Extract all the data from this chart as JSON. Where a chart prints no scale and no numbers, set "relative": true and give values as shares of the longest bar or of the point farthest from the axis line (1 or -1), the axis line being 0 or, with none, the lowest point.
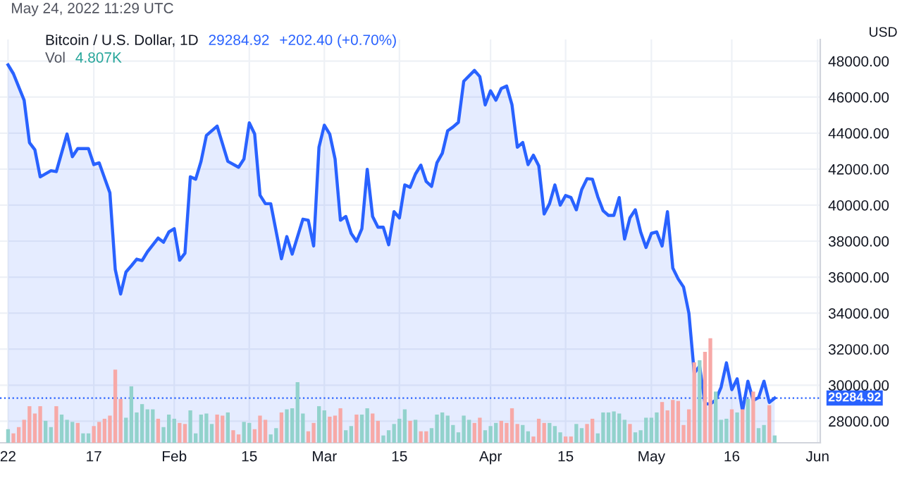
{
  "chart_data": [
    {
      "type": "area",
      "title": "Bitcoin / U.S. Dollar, 1D",
      "ylabel": "USD",
      "annotations": [
        "May 24, 2022 11:29 UTC",
        "29284.92",
        "+202.40 (+0.70%)"
      ],
      "x": [
        "2022-01-01",
        "2022-01-02",
        "2022-01-04",
        "2022-01-05",
        "2022-01-06",
        "2022-01-07",
        "2022-01-09",
        "2022-01-10",
        "2022-01-12",
        "2022-01-13",
        "2022-01-14",
        "2022-01-16",
        "2022-01-17",
        "2022-01-18",
        "2022-01-19",
        "2022-01-20",
        "2022-01-21",
        "2022-01-22",
        "2022-01-23",
        "2022-01-24",
        "2022-01-25",
        "2022-01-26",
        "2022-01-27",
        "2022-01-29",
        "2022-01-30",
        "2022-01-31",
        "2022-02-01",
        "2022-02-02",
        "2022-02-03",
        "2022-02-04",
        "2022-02-05",
        "2022-02-06",
        "2022-02-07",
        "2022-02-09",
        "2022-02-11",
        "2022-02-13",
        "2022-02-14",
        "2022-02-15",
        "2022-02-16",
        "2022-02-17",
        "2022-02-18",
        "2022-02-19",
        "2022-02-21",
        "2022-02-22",
        "2022-02-23",
        "2022-02-25",
        "2022-02-26",
        "2022-02-27",
        "2022-02-28",
        "2022-03-01",
        "2022-03-02",
        "2022-03-03",
        "2022-03-04",
        "2022-03-05",
        "2022-03-06",
        "2022-03-07",
        "2022-03-08",
        "2022-03-09",
        "2022-03-10",
        "2022-03-11",
        "2022-03-12",
        "2022-03-13",
        "2022-03-14",
        "2022-03-15",
        "2022-03-16",
        "2022-03-17",
        "2022-03-18",
        "2022-03-19",
        "2022-03-20",
        "2022-03-21",
        "2022-03-22",
        "2022-03-23",
        "2022-03-24",
        "2022-03-25",
        "2022-03-26",
        "2022-03-27",
        "2022-03-29",
        "2022-03-30",
        "2022-03-31",
        "2022-04-01",
        "2022-04-02",
        "2022-04-03",
        "2022-04-04",
        "2022-04-05",
        "2022-04-06",
        "2022-04-07",
        "2022-04-08",
        "2022-04-09",
        "2022-04-10",
        "2022-04-11",
        "2022-04-12",
        "2022-04-13",
        "2022-04-14",
        "2022-04-15",
        "2022-04-16",
        "2022-04-17",
        "2022-04-18",
        "2022-04-19",
        "2022-04-20",
        "2022-04-21",
        "2022-04-22",
        "2022-04-23",
        "2022-04-24",
        "2022-04-25",
        "2022-04-26",
        "2022-04-27",
        "2022-04-28",
        "2022-04-29",
        "2022-04-30",
        "2022-05-01",
        "2022-05-02",
        "2022-05-03",
        "2022-05-04",
        "2022-05-05",
        "2022-05-06",
        "2022-05-07",
        "2022-05-08",
        "2022-05-09",
        "2022-05-10",
        "2022-05-11",
        "2022-05-12",
        "2022-05-13",
        "2022-05-14",
        "2022-05-15",
        "2022-05-16",
        "2022-05-17",
        "2022-05-18",
        "2022-05-19",
        "2022-05-20",
        "2022-05-21",
        "2022-05-22",
        "2022-05-23",
        "2022-05-24"
      ],
      "series": [
        {
          "color": "#2962ff",
          "values": [
            47790,
            47300,
            45830,
            43470,
            43080,
            41570,
            41910,
            41860,
            43950,
            42690,
            43140,
            43140,
            42250,
            42350,
            41510,
            40680,
            36420,
            35060,
            36290,
            36630,
            37000,
            36920,
            37410,
            38170,
            37940,
            38510,
            38690,
            36940,
            37330,
            41570,
            41440,
            42430,
            43870,
            44390,
            42430,
            42100,
            42560,
            44570,
            43950,
            40550,
            40080,
            40080,
            37020,
            38250,
            37280,
            39220,
            39160,
            37730,
            43220,
            44440,
            43950,
            42560,
            39160,
            39370,
            38430,
            37990,
            38690,
            41990,
            39370,
            38770,
            38770,
            37800,
            39640,
            39290,
            41120,
            40990,
            41730,
            42220,
            41310,
            41040,
            42350,
            42880,
            44130,
            44340,
            44600,
            46880,
            47480,
            47140,
            45570,
            46350,
            45830,
            46480,
            46610,
            45570,
            43220,
            43480,
            42250,
            42770,
            42180,
            39510,
            40080,
            41120,
            40000,
            40530,
            40420,
            39740,
            40860,
            41470,
            41440,
            40470,
            39690,
            39430,
            39430,
            40420,
            38120,
            39290,
            39740,
            38510,
            37650,
            38430,
            38510,
            37730,
            39640,
            36500,
            35900,
            35450,
            33990,
            30670,
            31060,
            28970,
            28950,
            29180,
            29880,
            31240,
            29750,
            30350,
            28570,
            30220,
            29150,
            29310,
            30220,
            29040,
            29280
          ]
        }
      ],
      "xlim": [
        "2021-12-30T12:00",
        "2022-06-01T12:00"
      ],
      "xticks": [
        {
          "value": "2022-01-01",
          "label": "22"
        },
        {
          "value": "2022-01-17",
          "label": "17"
        },
        {
          "value": "2022-02-01",
          "label": "Feb"
        },
        {
          "value": "2022-02-15",
          "label": "15"
        },
        {
          "value": "2022-03-01",
          "label": "Mar"
        },
        {
          "value": "2022-03-15",
          "label": "15"
        },
        {
          "value": "2022-04-01",
          "label": "Apr"
        },
        {
          "value": "2022-04-15",
          "label": "15"
        },
        {
          "value": "2022-05-01",
          "label": "May"
        },
        {
          "value": "2022-05-16",
          "label": "16"
        },
        {
          "value": "2022-06-01",
          "label": "Jun"
        }
      ],
      "ylim": [
        26800,
        49200
      ],
      "yticks": [
        {
          "value": 28000,
          "label": "28000.00"
        },
        {
          "value": 30000,
          "label": "30000.00"
        },
        {
          "value": 32000,
          "label": "32000.00"
        },
        {
          "value": 34000,
          "label": "34000.00"
        },
        {
          "value": 36000,
          "label": "36000.00"
        },
        {
          "value": 38000,
          "label": "38000.00"
        },
        {
          "value": 40000,
          "label": "40000.00"
        },
        {
          "value": 42000,
          "label": "42000.00"
        },
        {
          "value": 44000,
          "label": "44000.00"
        },
        {
          "value": 46000,
          "label": "46000.00"
        },
        {
          "value": 48000,
          "label": "48000.00"
        }
      ],
      "grid": true,
      "ref_lines": [
        {
          "axis": "y",
          "value": 29284.92,
          "label": "29284.92",
          "color": "#2962ff",
          "line_style": "dotted"
        }
      ]
    },
    {
      "type": "bar",
      "relative": true,
      "title": "Vol",
      "annotations": [
        "4.807K"
      ],
      "categories": [
        null,
        null,
        null,
        null,
        null,
        null,
        null,
        null,
        null,
        null,
        null,
        null,
        null,
        null,
        null,
        null,
        null,
        null,
        null,
        null,
        null,
        null,
        null,
        null,
        null,
        null,
        null,
        null,
        null,
        null,
        null,
        null,
        null,
        null,
        null,
        null,
        null,
        null,
        null,
        null,
        null,
        null,
        null,
        null,
        null,
        null,
        null,
        null,
        null,
        null,
        null,
        null,
        null,
        null,
        null,
        null,
        null,
        null,
        null,
        null,
        null,
        null,
        null,
        null,
        null,
        null,
        null,
        null,
        null,
        null,
        null,
        null,
        null,
        null,
        null,
        null,
        null,
        null,
        null,
        null,
        null,
        null,
        null,
        null,
        null,
        null,
        null,
        null,
        null,
        null,
        null,
        null,
        null,
        null,
        null,
        null,
        null,
        null,
        null,
        null,
        null,
        null,
        null,
        null,
        null,
        null,
        null,
        null,
        null,
        null,
        null,
        null,
        null,
        null,
        null,
        null,
        null,
        null,
        null,
        null,
        null,
        null,
        null,
        null,
        null,
        null,
        null,
        null,
        null,
        null,
        null,
        null,
        null,
        null,
        null,
        null,
        null,
        null,
        null,
        null,
        null,
        null,
        null,
        null
      ],
      "values": [
        0.13,
        0.09,
        0.15,
        0.22,
        0.35,
        0.28,
        0.35,
        0.21,
        0.15,
        0.35,
        0.27,
        0.22,
        0.2,
        0.19,
        0.09,
        0.09,
        0.16,
        0.2,
        0.23,
        0.26,
        0.7,
        0.42,
        0.24,
        0.54,
        0.29,
        0.37,
        0.32,
        0.32,
        0.23,
        0.15,
        0.27,
        0.23,
        0.19,
        0.18,
        0.31,
        0.09,
        0.27,
        0.28,
        0.18,
        0.27,
        0.26,
        0.29,
        0.12,
        0.08,
        0.2,
        0.19,
        0.13,
        0.26,
        0.22,
        0.08,
        0.14,
        0.29,
        0.32,
        0.33,
        0.58,
        0.28,
        0.11,
        0.19,
        0.35,
        0.31,
        0.25,
        0.26,
        0.33,
        0.12,
        0.16,
        0.27,
        0.27,
        0.33,
        0.28,
        0.21,
        0.07,
        0.12,
        0.18,
        0.23,
        0.32,
        0.21,
        0.22,
        0.11,
        0.11,
        0.14,
        0.27,
        0.29,
        0.26,
        0.17,
        0.1,
        0.26,
        0.22,
        0.19,
        0.24,
        0.12,
        0.16,
        0.19,
        0.21,
        0.19,
        0.33,
        0.18,
        0.17,
        0.11,
        0.06,
        0.23,
        0.19,
        0.19,
        0.16,
        0.1,
        0.06,
        0.06,
        0.18,
        0.14,
        0.18,
        0.23,
        0.09,
        0.29,
        0.29,
        0.3,
        0.28,
        0.22,
        0.18,
        0.1,
        0.12,
        0.24,
        0.24,
        0.29,
        0.39,
        0.31,
        0.41,
        0.4,
        0.17,
        0.32,
        0.77,
        0.79,
        0.87,
        1.0,
        0.49,
        0.22,
        0.23,
        0.32,
        0.29,
        0.32,
        0.42,
        0.49,
        0.14,
        0.17,
        0.36,
        0.07
      ],
      "colors": [
        "#92d2cc",
        "#f7a9a7",
        "#f7a9a7",
        "#f7a9a7",
        "#f7a9a7",
        "#f7a9a7",
        "#f7a9a7",
        "#92d2cc",
        "#92d2cc",
        "#f7a9a7",
        "#92d2cc",
        "#92d2cc",
        "#92d2cc",
        "#f7a9a7",
        "#92d2cc",
        "#92d2cc",
        "#f7a9a7",
        "#f7a9a7",
        "#f7a9a7",
        "#f7a9a7",
        "#f7a9a7",
        "#f7a9a7",
        "#92d2cc",
        "#92d2cc",
        "#92d2cc",
        "#92d2cc",
        "#92d2cc",
        "#92d2cc",
        "#f7a9a7",
        "#92d2cc",
        "#92d2cc",
        "#92d2cc",
        "#f7a9a7",
        "#f7a9a7",
        "#92d2cc",
        "#92d2cc",
        "#92d2cc",
        "#92d2cc",
        "#92d2cc",
        "#f7a9a7",
        "#f7a9a7",
        "#92d2cc",
        "#f7a9a7",
        "#f7a9a7",
        "#92d2cc",
        "#92d2cc",
        "#f7a9a7",
        "#f7a9a7",
        "#f7a9a7",
        "#92d2cc",
        "#92d2cc",
        "#f7a9a7",
        "#92d2cc",
        "#92d2cc",
        "#92d2cc",
        "#92d2cc",
        "#f7a9a7",
        "#f7a9a7",
        "#92d2cc",
        "#92d2cc",
        "#f7a9a7",
        "#f7a9a7",
        "#f7a9a7",
        "#92d2cc",
        "#92d2cc",
        "#f7a9a7",
        "#92d2cc",
        "#92d2cc",
        "#f7a9a7",
        "#f7a9a7",
        "#92d2cc",
        "#92d2cc",
        "#92d2cc",
        "#92d2cc",
        "#92d2cc",
        "#f7a9a7",
        "#92d2cc",
        "#f7a9a7",
        "#f7a9a7",
        "#92d2cc",
        "#92d2cc",
        "#92d2cc",
        "#92d2cc",
        "#92d2cc",
        "#92d2cc",
        "#92d2cc",
        "#92d2cc",
        "#f7a9a7",
        "#f7a9a7",
        "#92d2cc",
        "#92d2cc",
        "#92d2cc",
        "#f7a9a7",
        "#f7a9a7",
        "#f7a9a7",
        "#f7a9a7",
        "#92d2cc",
        "#92d2cc",
        "#f7a9a7",
        "#f7a9a7",
        "#f7a9a7",
        "#92d2cc",
        "#92d2cc",
        "#92d2cc",
        "#f7a9a7",
        "#f7a9a7",
        "#92d2cc",
        "#92d2cc",
        "#f7a9a7",
        "#f7a9a7",
        "#92d2cc",
        "#92d2cc",
        "#92d2cc",
        "#92d2cc",
        "#92d2cc",
        "#92d2cc",
        "#f7a9a7",
        "#92d2cc",
        "#92d2cc",
        "#92d2cc",
        "#92d2cc",
        "#92d2cc",
        "#f7a9a7",
        "#f7a9a7",
        "#f7a9a7",
        "#f7a9a7",
        "#f7a9a7",
        "#f7a9a7",
        "#f7a9a7",
        "#92d2cc",
        "#f7a9a7",
        "#f7a9a7",
        "#92d2cc",
        "#92d2cc",
        "#92d2cc",
        "#f7a9a7",
        "#92d2cc",
        "#f7a9a7",
        "#92d2cc",
        "#f7a9a7",
        "#92d2cc",
        "#92d2cc",
        "#f7a9a7",
        "#92d2cc"
      ]
    }
  ]
}
